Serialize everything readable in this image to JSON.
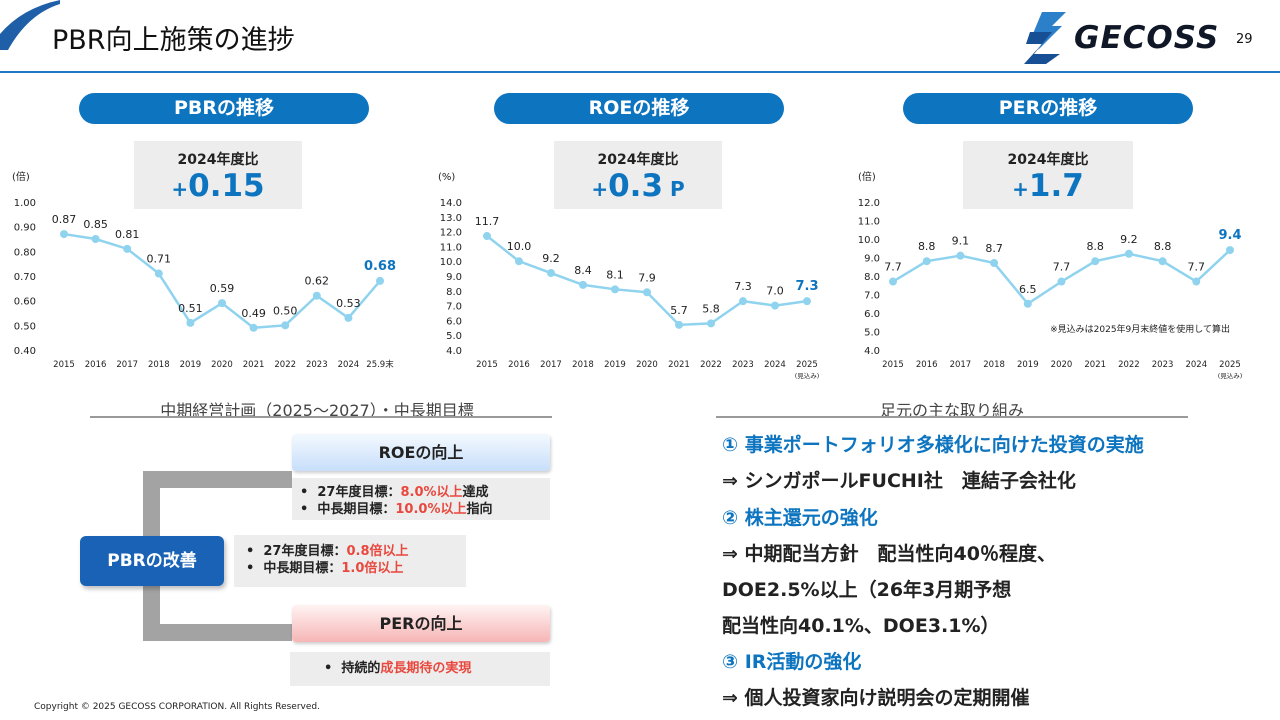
{
  "page": {
    "title": "PBR向上施策の進捗",
    "page_number": "29",
    "logo_text": "GECOSS",
    "copyright": "Copyright © 2025 GECOSS CORPORATION. All Rights Reserved.",
    "colors": {
      "brand_blue": "#0d74c0",
      "line": "#8fd3ee",
      "highlight_red": "#e8483e"
    }
  },
  "panels": [
    {
      "title": "PBRの推移",
      "delta_caption": "2024年度比",
      "delta_sign": "+",
      "delta_value": "0.15",
      "delta_unit": ""
    },
    {
      "title": "ROEの推移",
      "delta_caption": "2024年度比",
      "delta_sign": "+",
      "delta_value": "0.3",
      "delta_unit": " P"
    },
    {
      "title": "PERの推移",
      "delta_caption": "2024年度比",
      "delta_sign": "+",
      "delta_value": "1.7",
      "delta_unit": ""
    }
  ],
  "chart_data": [
    {
      "type": "line",
      "title": "PBRの推移",
      "unit_label": "(倍)",
      "categories": [
        "2015",
        "2016",
        "2017",
        "2018",
        "2019",
        "2020",
        "2021",
        "2022",
        "2023",
        "2024",
        "25.9末"
      ],
      "values": [
        0.87,
        0.85,
        0.81,
        0.71,
        0.51,
        0.59,
        0.49,
        0.5,
        0.62,
        0.53,
        0.68
      ],
      "labels": [
        "0.87",
        "0.85",
        "0.81",
        "0.71",
        "0.51",
        "0.59",
        "0.49",
        "0.50",
        "0.62",
        "0.53",
        "0.68"
      ],
      "yticks": [
        "0.40",
        "0.50",
        "0.60",
        "0.70",
        "0.80",
        "0.90",
        "1.00"
      ],
      "ylim": [
        0.4,
        1.0
      ],
      "note": "",
      "last_sub": ""
    },
    {
      "type": "line",
      "title": "ROEの推移",
      "unit_label": "(%)",
      "categories": [
        "2015",
        "2016",
        "2017",
        "2018",
        "2019",
        "2020",
        "2021",
        "2022",
        "2023",
        "2024",
        "2025"
      ],
      "values": [
        11.7,
        10.0,
        9.2,
        8.4,
        8.1,
        7.9,
        5.7,
        5.8,
        7.3,
        7.0,
        7.3
      ],
      "labels": [
        "11.7",
        "10.0",
        "9.2",
        "8.4",
        "8.1",
        "7.9",
        "5.7",
        "5.8",
        "7.3",
        "7.0",
        "7.3"
      ],
      "yticks": [
        "4.0",
        "5.0",
        "6.0",
        "7.0",
        "8.0",
        "9.0",
        "10.0",
        "11.0",
        "12.0",
        "13.0",
        "14.0"
      ],
      "ylim": [
        4.0,
        14.0
      ],
      "note": "",
      "last_sub": "(見込み)"
    },
    {
      "type": "line",
      "title": "PERの推移",
      "unit_label": "(倍)",
      "categories": [
        "2015",
        "2016",
        "2017",
        "2018",
        "2019",
        "2020",
        "2021",
        "2022",
        "2023",
        "2024",
        "2025"
      ],
      "values": [
        7.7,
        8.8,
        9.1,
        8.7,
        6.5,
        7.7,
        8.8,
        9.2,
        8.8,
        7.7,
        9.4
      ],
      "labels": [
        "7.7",
        "8.8",
        "9.1",
        "8.7",
        "6.5",
        "7.7",
        "8.8",
        "9.2",
        "8.8",
        "7.7",
        "9.4"
      ],
      "yticks": [
        "4.0",
        "5.0",
        "6.0",
        "7.0",
        "8.0",
        "9.0",
        "10.0",
        "11.0",
        "12.0"
      ],
      "ylim": [
        4.0,
        12.0
      ],
      "note": "※見込みは2025年9月末終値を使用して算出",
      "last_sub": "(見込み)"
    }
  ],
  "plan": {
    "heading": "中期経営計画（2025～2027）・中長期目標",
    "pbr_label": "PBRの改善",
    "pbr_rows": [
      {
        "bullet": "•",
        "label": "27年度目標：",
        "value": "0.8倍以上",
        "suffix": ""
      },
      {
        "bullet": "•",
        "label": "中長期目標：",
        "value": "1.0倍以上",
        "suffix": ""
      }
    ],
    "roe_label": "ROEの向上",
    "roe_rows": [
      {
        "bullet": "•",
        "label": "27年度目標：",
        "value": "8.0%以上",
        "suffix": "達成"
      },
      {
        "bullet": "•",
        "label": "中長期目標：",
        "value": "10.0%以上",
        "suffix": "指向"
      }
    ],
    "per_label": "PERの向上",
    "per_rows": [
      {
        "bullet": "•",
        "label": "持続的",
        "value": "成長期待の実現",
        "suffix": ""
      }
    ]
  },
  "initiatives": {
    "heading": "足元の主な取り組み",
    "items": [
      {
        "kind": "h",
        "text": "①  事業ポートフォリオ多様化に向けた投資の実施"
      },
      {
        "kind": "b",
        "text": "  ⇒ シンガポールFUCHI社　連結子会社化"
      },
      {
        "kind": "h",
        "text": "②  株主還元の強化"
      },
      {
        "kind": "b",
        "text": "  ⇒ 中期配当方針　配当性向40％程度、"
      },
      {
        "kind": "b",
        "text": "      DOE2.5%以上（26年3月期予想"
      },
      {
        "kind": "b",
        "text": "      配当性向40.1%、DOE3.1%）"
      },
      {
        "kind": "h",
        "text": "③  IR活動の強化"
      },
      {
        "kind": "b",
        "text": "  ⇒ 個人投資家向け説明会の定期開催"
      }
    ]
  }
}
